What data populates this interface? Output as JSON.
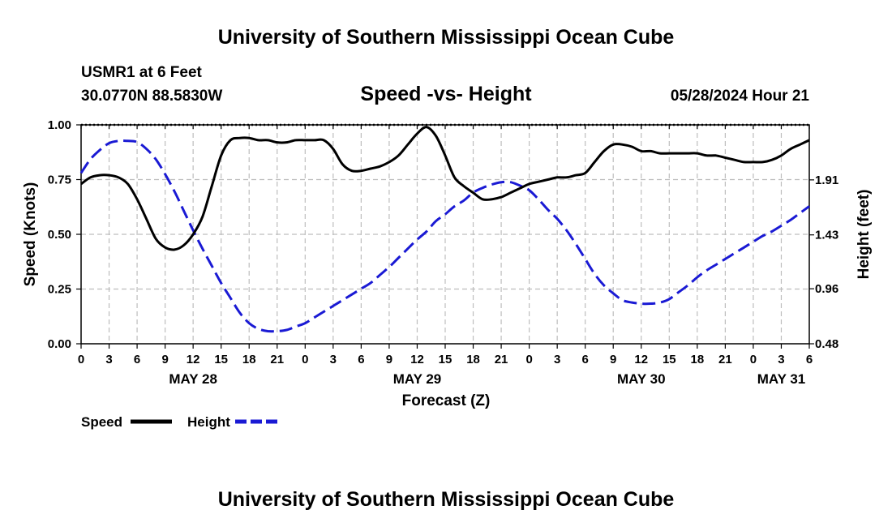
{
  "header": {
    "title": "University of Southern Mississippi Ocean Cube",
    "station": "USMR1 at 6 Feet",
    "coords": "30.0770N  88.5830W",
    "datetime": "05/28/2024 Hour 21"
  },
  "footer": {
    "title": "University of Southern Mississippi Ocean Cube"
  },
  "chart_data": {
    "type": "line",
    "title": "Speed -vs- Height",
    "xlabel": "Forecast (Z)",
    "ylabel": "Speed (Knots)",
    "y2label": "Height (feet)",
    "x_hours": [
      0,
      78
    ],
    "ylim": [
      0,
      1
    ],
    "y_ticks": [
      0,
      0.25,
      0.5,
      0.75,
      1.0
    ],
    "y_tick_labels": [
      "0.00",
      "0.25",
      "0.50",
      "0.75",
      "1.00"
    ],
    "y2lim": [
      0.48,
      2.39
    ],
    "y2_ticks": [
      0.48,
      0.96,
      1.43,
      1.91
    ],
    "y2_tick_labels": [
      "0.48",
      "0.96",
      "1.43",
      "1.91"
    ],
    "x_tick_labels": [
      "0",
      "3",
      "6",
      "9",
      "12",
      "15",
      "18",
      "21",
      "0",
      "3",
      "6",
      "9",
      "12",
      "15",
      "18",
      "21",
      "0",
      "3",
      "6",
      "9",
      "12",
      "15",
      "18",
      "21",
      "0",
      "3",
      "6"
    ],
    "date_labels": [
      {
        "text": "MAY 28",
        "hour": 12
      },
      {
        "text": "MAY 29",
        "hour": 36
      },
      {
        "text": "MAY 30",
        "hour": 60
      },
      {
        "text": "MAY 31",
        "hour": 75
      }
    ],
    "series": [
      {
        "name": "Speed",
        "color": "#000000",
        "style": "solid",
        "axis": "left",
        "x": [
          0,
          1,
          2,
          3,
          4,
          5,
          6,
          7,
          8,
          9,
          10,
          11,
          12,
          13,
          14,
          15,
          16,
          17,
          18,
          19,
          20,
          21,
          22,
          23,
          24,
          25,
          26,
          27,
          28,
          29,
          30,
          31,
          32,
          33,
          34,
          35,
          36,
          37,
          38,
          39,
          40,
          41,
          42,
          43,
          44,
          45,
          46,
          47,
          48,
          49,
          50,
          51,
          52,
          53,
          54,
          55,
          56,
          57,
          58,
          59,
          60,
          61,
          62,
          63,
          64,
          65,
          66,
          67,
          68,
          69,
          70,
          71,
          72,
          73,
          74,
          75,
          76,
          77,
          78
        ],
        "values": [
          0.73,
          0.76,
          0.77,
          0.77,
          0.76,
          0.73,
          0.66,
          0.57,
          0.48,
          0.44,
          0.43,
          0.45,
          0.5,
          0.58,
          0.72,
          0.86,
          0.93,
          0.94,
          0.94,
          0.93,
          0.93,
          0.92,
          0.92,
          0.93,
          0.93,
          0.93,
          0.93,
          0.89,
          0.82,
          0.79,
          0.79,
          0.8,
          0.81,
          0.83,
          0.86,
          0.91,
          0.96,
          0.99,
          0.95,
          0.86,
          0.76,
          0.72,
          0.69,
          0.66,
          0.66,
          0.67,
          0.69,
          0.71,
          0.73,
          0.74,
          0.75,
          0.76,
          0.76,
          0.77,
          0.78,
          0.83,
          0.88,
          0.91,
          0.91,
          0.9,
          0.88,
          0.88,
          0.87,
          0.87,
          0.87,
          0.87,
          0.87,
          0.86,
          0.86,
          0.85,
          0.84,
          0.83,
          0.83,
          0.83,
          0.84,
          0.86,
          0.89,
          0.91,
          0.93
        ]
      },
      {
        "name": "Height",
        "color": "#1a1ad4",
        "style": "dashed",
        "axis": "right",
        "x": [
          0,
          1,
          2,
          3,
          4,
          5,
          6,
          7,
          8,
          9,
          10,
          11,
          12,
          13,
          14,
          15,
          16,
          17,
          18,
          19,
          20,
          21,
          22,
          23,
          24,
          25,
          26,
          27,
          28,
          29,
          30,
          31,
          32,
          33,
          34,
          35,
          36,
          37,
          38,
          39,
          40,
          41,
          42,
          43,
          44,
          45,
          46,
          47,
          48,
          49,
          50,
          51,
          52,
          53,
          54,
          55,
          56,
          57,
          58,
          59,
          60,
          61,
          62,
          63,
          64,
          65,
          66,
          67,
          68,
          69,
          70,
          71,
          72,
          73,
          74,
          75,
          76,
          77,
          78
        ],
        "values": [
          1.97,
          2.09,
          2.17,
          2.23,
          2.25,
          2.25,
          2.24,
          2.18,
          2.09,
          1.96,
          1.81,
          1.64,
          1.47,
          1.31,
          1.16,
          1.01,
          0.88,
          0.75,
          0.66,
          0.61,
          0.59,
          0.59,
          0.6,
          0.63,
          0.66,
          0.71,
          0.76,
          0.81,
          0.86,
          0.91,
          0.96,
          1.01,
          1.08,
          1.15,
          1.23,
          1.31,
          1.39,
          1.46,
          1.55,
          1.61,
          1.68,
          1.73,
          1.8,
          1.84,
          1.87,
          1.89,
          1.89,
          1.86,
          1.82,
          1.74,
          1.65,
          1.57,
          1.47,
          1.35,
          1.22,
          1.09,
          0.99,
          0.92,
          0.86,
          0.84,
          0.83,
          0.83,
          0.84,
          0.87,
          0.93,
          0.99,
          1.06,
          1.12,
          1.17,
          1.22,
          1.27,
          1.32,
          1.37,
          1.42,
          1.46,
          1.51,
          1.56,
          1.62,
          1.68
        ]
      }
    ],
    "legend": [
      {
        "label": "Speed",
        "color": "#000000",
        "style": "solid"
      },
      {
        "label": "Height",
        "color": "#1a1ad4",
        "style": "dashed"
      }
    ]
  }
}
